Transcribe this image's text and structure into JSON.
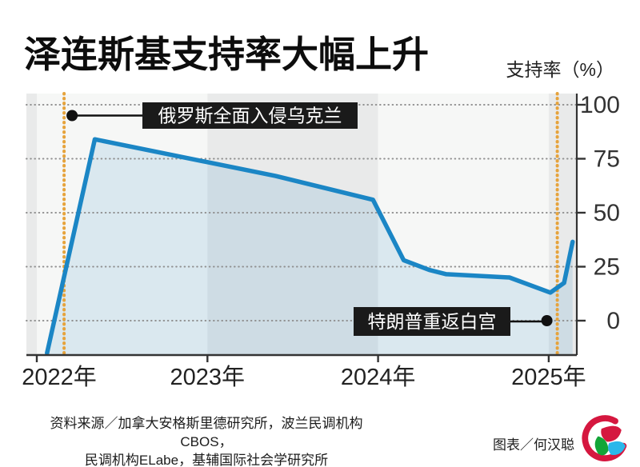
{
  "header": {
    "title": "泽连斯基支持率大幅上升",
    "axis_unit_label": "支持率（%）"
  },
  "chart_data": {
    "type": "area",
    "title": "泽连斯基支持率大幅上升",
    "ylabel": "支持率（%）",
    "xlabel": "",
    "ylim": [
      -16,
      105
    ],
    "xlim": [
      2021.94,
      2025.17
    ],
    "grid": "dotted-horizontal",
    "legend": "none",
    "y_ticks": [
      0,
      25,
      50,
      75,
      100
    ],
    "x_ticks": [
      {
        "year": 2022,
        "label": "2022年"
      },
      {
        "year": 2023,
        "label": "2023年"
      },
      {
        "year": 2024,
        "label": "2024年"
      },
      {
        "year": 2025,
        "label": "2025年"
      }
    ],
    "series": [
      {
        "name": "支持率",
        "color": "#1b86c5",
        "points": [
          [
            2022.06,
            -15
          ],
          [
            2022.34,
            84
          ],
          [
            2023.4,
            67
          ],
          [
            2023.97,
            56
          ],
          [
            2024.15,
            28
          ],
          [
            2024.3,
            23.5
          ],
          [
            2024.4,
            21.5
          ],
          [
            2024.77,
            20
          ],
          [
            2025.01,
            13
          ],
          [
            2025.09,
            17.5
          ],
          [
            2025.14,
            36.5
          ]
        ]
      }
    ],
    "events": [
      {
        "year": 2022.16,
        "label": "俄罗斯全面入侵乌克兰",
        "dot_value": 95
      },
      {
        "year": 2025.05,
        "label": "特朗普重返白宫",
        "dot_value": 0
      }
    ],
    "colors": {
      "band_dark": "#e9eaea",
      "band_light": "#f6f7f6",
      "fill": "rgba(31,134,197,0.13)",
      "grid": "#909090",
      "event_line": "#e6a33c",
      "axis": "#333333",
      "annotation_bg": "#1a1a1a",
      "annotation_text": "#ffffff",
      "tick_label": "#333333"
    }
  },
  "footer": {
    "source_line1": "资料来源／加拿大安格斯里德研究所，波兰民调机构CBOS，",
    "source_line2": "民调机构ELabe，基辅国际社会学研究所",
    "credit": "图表／何汉聪",
    "logo_name": "8world-logo"
  }
}
